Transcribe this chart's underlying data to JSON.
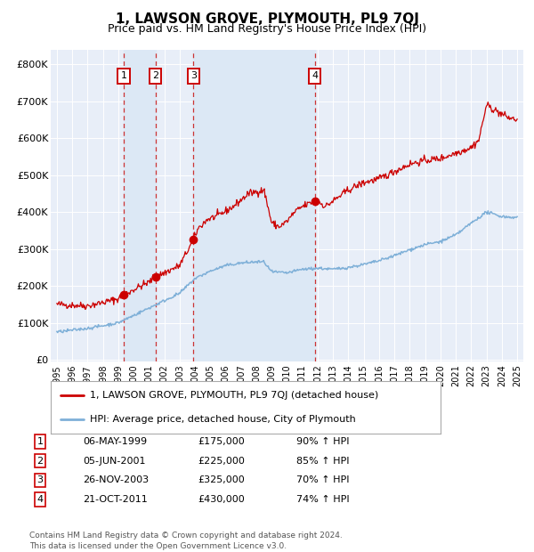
{
  "title": "1, LAWSON GROVE, PLYMOUTH, PL9 7QJ",
  "subtitle": "Price paid vs. HM Land Registry's House Price Index (HPI)",
  "title_fontsize": 11,
  "subtitle_fontsize": 9,
  "background_color": "#ffffff",
  "plot_bg_color": "#e8eef8",
  "grid_color": "#ffffff",
  "red_line_color": "#cc0000",
  "blue_line_color": "#7fb0d8",
  "shade_color": "#dce8f5",
  "ylabel_values": [
    0,
    100000,
    200000,
    300000,
    400000,
    500000,
    600000,
    700000,
    800000
  ],
  "ylabel_labels": [
    "£0",
    "£100K",
    "£200K",
    "£300K",
    "£400K",
    "£500K",
    "£600K",
    "£700K",
    "£800K"
  ],
  "xlim_start": 1994.6,
  "xlim_end": 2025.4,
  "ylim_min": -5000,
  "ylim_max": 840000,
  "purchases": [
    {
      "num": 1,
      "year": 1999.35,
      "price": 175000,
      "date": "06-MAY-1999",
      "pct": "90% ↑ HPI"
    },
    {
      "num": 2,
      "year": 2001.42,
      "price": 225000,
      "date": "05-JUN-2001",
      "pct": "85% ↑ HPI"
    },
    {
      "num": 3,
      "year": 2003.9,
      "price": 325000,
      "date": "26-NOV-2003",
      "pct": "70% ↑ HPI"
    },
    {
      "num": 4,
      "year": 2011.8,
      "price": 430000,
      "date": "21-OCT-2011",
      "pct": "74% ↑ HPI"
    }
  ],
  "legend_line1": "1, LAWSON GROVE, PLYMOUTH, PL9 7QJ (detached house)",
  "legend_line2": "HPI: Average price, detached house, City of Plymouth",
  "footer": "Contains HM Land Registry data © Crown copyright and database right 2024.\nThis data is licensed under the Open Government Licence v3.0.",
  "xtick_years": [
    1995,
    1996,
    1997,
    1998,
    1999,
    2000,
    2001,
    2002,
    2003,
    2004,
    2005,
    2006,
    2007,
    2008,
    2009,
    2010,
    2011,
    2012,
    2013,
    2014,
    2015,
    2016,
    2017,
    2018,
    2019,
    2020,
    2021,
    2022,
    2023,
    2024,
    2025
  ]
}
